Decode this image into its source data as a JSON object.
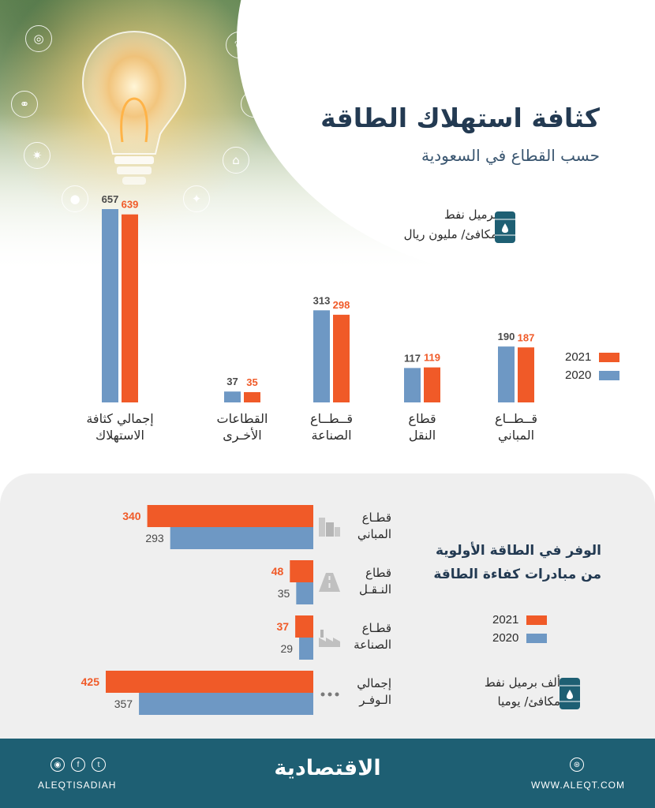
{
  "header": {
    "title": "كثافة استهلاك الطاقة",
    "subtitle": "حسب القطاع في السعودية",
    "unit_line1": "برميل نفط",
    "unit_line2": "مكافئ/ مليون ريال"
  },
  "legend": {
    "y2021": "2021",
    "y2020": "2020"
  },
  "colors": {
    "y2021": "#f05a28",
    "y2020": "#6e98c4",
    "title": "#233a52",
    "footer": "#1e5f73",
    "panel": "#efefef"
  },
  "chart_data": [
    {
      "type": "bar",
      "title": "كثافة استهلاك الطاقة",
      "subtitle": "حسب القطاع في السعودية",
      "unit": "برميل نفط مكافئ/ مليون ريال",
      "categories": [
        {
          "line1": "قــطــاع",
          "line2": "المباني"
        },
        {
          "line1": "قطاع",
          "line2": "النقل"
        },
        {
          "line1": "قــطــاع",
          "line2": "الصناعة"
        },
        {
          "line1": "القطاعات",
          "line2": "الأخـرى"
        },
        {
          "line1": "إجمالي كثافة",
          "line2": "الاستهلاك"
        }
      ],
      "series": [
        {
          "name": "2020",
          "values": [
            190,
            117,
            313,
            37,
            657
          ]
        },
        {
          "name": "2021",
          "values": [
            187,
            119,
            298,
            35,
            639
          ]
        }
      ],
      "ylim": [
        0,
        657
      ]
    },
    {
      "type": "bar",
      "orientation": "horizontal",
      "title": "الوفر في الطاقة الأولوية",
      "subtitle": "من مبادرات كفاءة الطاقة",
      "unit": "ألف برميل نفط مكافئ/ يوميا",
      "categories": [
        {
          "line1": "قطـاع",
          "line2": "المباني"
        },
        {
          "line1": "قطاع",
          "line2": "النـقـل"
        },
        {
          "line1": "قطـاع",
          "line2": "الصناعة"
        },
        {
          "line1": "إجمالي",
          "line2": "الـوفـر"
        }
      ],
      "series": [
        {
          "name": "2021",
          "values": [
            340,
            48,
            37,
            425
          ]
        },
        {
          "name": "2020",
          "values": [
            293,
            35,
            29,
            357
          ]
        }
      ],
      "xlim": [
        0,
        425
      ]
    }
  ],
  "bottom": {
    "title_line1": "الوفر في الطاقة الأولوية",
    "title_line2": "من مبادرات كفاءة الطاقة",
    "unit_line1": "ألف برميل نفط",
    "unit_line2": "مكافئ/ يوميا"
  },
  "footer": {
    "brand": "الاقتصادية",
    "handle": "ALEQTISADIAH",
    "site": "WWW.ALEQT.COM"
  },
  "icons": [
    "bulb-icon",
    "globe-icon",
    "leaf-icon",
    "recycle-icon",
    "home-icon",
    "sun-icon",
    "drop-icon",
    "barrel-icon",
    "building-icon",
    "road-icon",
    "factory-icon",
    "dots-icon",
    "instagram-icon",
    "facebook-icon",
    "twitter-icon",
    "web-icon"
  ]
}
